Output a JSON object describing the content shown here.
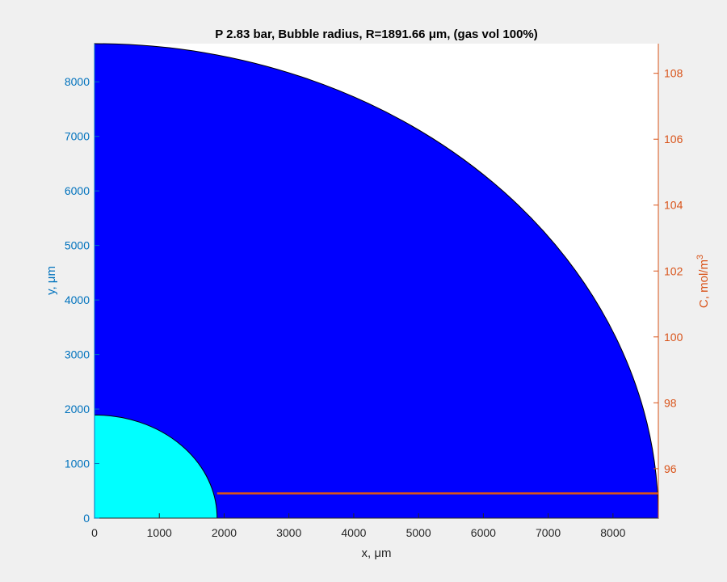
{
  "chart_data": {
    "type": "area",
    "title": "P 2.83 bar, Bubble radius, R=1891.66 μm, (gas vol 100%)",
    "xlabel": "x, μm",
    "ylabel_left": "y, μm",
    "ylabel_right": "C, mol/m",
    "ylabel_right_sup": "3",
    "xlim": [
      0,
      8700
    ],
    "ylim_left": [
      0,
      8700
    ],
    "ylim_right": [
      94.5,
      108.9
    ],
    "x_ticks": [
      0,
      1000,
      2000,
      3000,
      4000,
      5000,
      6000,
      7000,
      8000
    ],
    "y_left_ticks": [
      0,
      1000,
      2000,
      3000,
      4000,
      5000,
      6000,
      7000,
      8000
    ],
    "y_right_ticks": [
      96,
      98,
      100,
      102,
      104,
      106,
      108
    ],
    "regions": [
      {
        "name": "liquid",
        "shape": "quarter-circle",
        "radius": 8700,
        "color": "#0000ff"
      },
      {
        "name": "bubble",
        "shape": "quarter-circle",
        "radius": 1891.66,
        "color": "#00ffff"
      }
    ],
    "series": [
      {
        "axis": "right",
        "color": "#d95319",
        "x": [
          1891.66,
          8700
        ],
        "values": [
          95.25,
          95.25
        ]
      }
    ],
    "colors": {
      "left_axis": "#0072bd",
      "right_axis": "#d95319"
    },
    "grid": false
  }
}
